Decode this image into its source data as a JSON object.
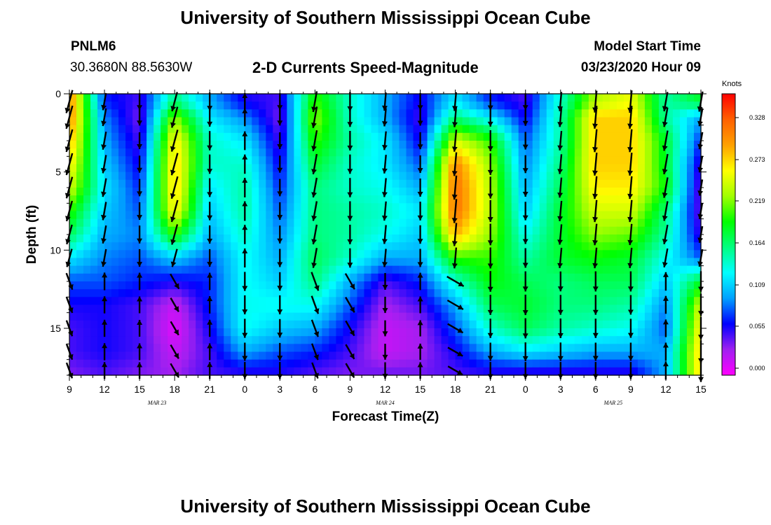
{
  "header": {
    "title": "University of Southern Mississippi Ocean Cube",
    "station_id": "PNLM6",
    "station_coords": "30.3680N 88.5630W",
    "subtitle": "2-D Currents Speed-Magnitude",
    "model_start_label": "Model Start Time",
    "model_start_value": "03/23/2020 Hour 09"
  },
  "footer": {
    "title": "University of Southern Mississippi Ocean Cube"
  },
  "colors": {
    "scale": [
      "#ff00ff",
      "#a020f0",
      "#0000ff",
      "#00a0ff",
      "#00ffff",
      "#00ff80",
      "#00ff00",
      "#a0ff00",
      "#ffff00",
      "#ffa000",
      "#ff6000",
      "#ff0000"
    ],
    "arrow": "#000000",
    "frame": "#000000"
  },
  "chart_data": {
    "type": "heatmap",
    "title": "2-D Currents Speed-Magnitude",
    "xlabel": "Forecast Time(Z)",
    "ylabel": "Depth (ft)",
    "x_ticks": [
      "9",
      "12",
      "15",
      "18",
      "21",
      "0",
      "3",
      "6",
      "9",
      "12",
      "15",
      "18",
      "21",
      "0",
      "3",
      "6",
      "9",
      "12",
      "15"
    ],
    "x_range_hours": [
      0,
      54
    ],
    "date_labels": [
      {
        "text": "MAR 23",
        "hour": 7.5
      },
      {
        "text": "MAR 24",
        "hour": 27
      },
      {
        "text": "MAR 25",
        "hour": 46.5
      }
    ],
    "y_ticks": [
      0,
      5,
      10,
      15
    ],
    "y_range_ft": [
      0,
      18
    ],
    "y_inverted": true,
    "colorbar": {
      "unit": "Knots",
      "range": [
        0.0,
        0.35
      ],
      "tick_values": [
        0.328,
        0.273,
        0.219,
        0.164,
        0.109,
        0.055,
        0.0
      ],
      "tick_labels": [
        "0.328",
        "0.273",
        "0.219",
        "0.164",
        "0.109",
        "0.055",
        "0.000"
      ]
    },
    "depth_levels_ft": [
      0.5,
      1.5,
      3,
      4.5,
      6,
      7.5,
      9,
      10.5,
      12,
      13.5,
      15,
      16.5,
      17.7
    ],
    "speed_grid": {
      "hours": [
        0,
        3,
        6,
        9,
        12,
        15,
        18,
        21,
        24,
        27,
        30,
        33,
        36,
        39,
        42,
        45,
        48,
        51,
        54
      ],
      "depth_rows": [
        {
          "depth": 0.5,
          "speeds": [
            0.3,
            0.07,
            0.05,
            0.16,
            0.1,
            0.06,
            0.05,
            0.2,
            0.14,
            0.1,
            0.06,
            0.12,
            0.07,
            0.05,
            0.14,
            0.23,
            0.25,
            0.15,
            0.18
          ]
        },
        {
          "depth": 1.5,
          "speeds": [
            0.3,
            0.09,
            0.04,
            0.22,
            0.12,
            0.09,
            0.04,
            0.22,
            0.14,
            0.1,
            0.05,
            0.16,
            0.12,
            0.06,
            0.15,
            0.27,
            0.27,
            0.15,
            0.1
          ]
        },
        {
          "depth": 3.0,
          "speeds": [
            0.28,
            0.1,
            0.05,
            0.26,
            0.14,
            0.12,
            0.05,
            0.2,
            0.15,
            0.12,
            0.06,
            0.24,
            0.2,
            0.08,
            0.15,
            0.27,
            0.27,
            0.18,
            0.07
          ]
        },
        {
          "depth": 4.5,
          "speeds": [
            0.26,
            0.11,
            0.06,
            0.27,
            0.14,
            0.14,
            0.06,
            0.18,
            0.14,
            0.12,
            0.08,
            0.3,
            0.22,
            0.09,
            0.16,
            0.27,
            0.27,
            0.18,
            0.05
          ]
        },
        {
          "depth": 6.0,
          "speeds": [
            0.24,
            0.12,
            0.07,
            0.27,
            0.12,
            0.15,
            0.07,
            0.16,
            0.14,
            0.13,
            0.1,
            0.31,
            0.23,
            0.1,
            0.17,
            0.26,
            0.26,
            0.19,
            0.04
          ]
        },
        {
          "depth": 7.5,
          "speeds": [
            0.2,
            0.11,
            0.08,
            0.26,
            0.11,
            0.15,
            0.08,
            0.16,
            0.15,
            0.14,
            0.12,
            0.31,
            0.23,
            0.11,
            0.18,
            0.24,
            0.24,
            0.16,
            0.04
          ]
        },
        {
          "depth": 9.0,
          "speeds": [
            0.17,
            0.1,
            0.09,
            0.2,
            0.1,
            0.14,
            0.09,
            0.16,
            0.15,
            0.13,
            0.11,
            0.28,
            0.22,
            0.13,
            0.18,
            0.22,
            0.21,
            0.15,
            0.05
          ]
        },
        {
          "depth": 10.5,
          "speeds": [
            0.12,
            0.09,
            0.08,
            0.11,
            0.08,
            0.13,
            0.1,
            0.17,
            0.14,
            0.1,
            0.1,
            0.2,
            0.2,
            0.15,
            0.18,
            0.19,
            0.18,
            0.13,
            0.08
          ]
        },
        {
          "depth": 12.0,
          "speeds": [
            0.08,
            0.08,
            0.07,
            0.06,
            0.07,
            0.13,
            0.11,
            0.16,
            0.1,
            0.05,
            0.07,
            0.14,
            0.19,
            0.17,
            0.16,
            0.17,
            0.17,
            0.11,
            0.18
          ]
        },
        {
          "depth": 13.5,
          "speeds": [
            0.06,
            0.06,
            0.05,
            0.02,
            0.07,
            0.13,
            0.13,
            0.13,
            0.08,
            0.03,
            0.05,
            0.1,
            0.17,
            0.18,
            0.16,
            0.16,
            0.15,
            0.09,
            0.24
          ]
        },
        {
          "depth": 15.0,
          "speeds": [
            0.05,
            0.06,
            0.05,
            0.01,
            0.06,
            0.13,
            0.11,
            0.1,
            0.06,
            0.02,
            0.03,
            0.08,
            0.14,
            0.17,
            0.15,
            0.14,
            0.13,
            0.08,
            0.26
          ]
        },
        {
          "depth": 16.5,
          "speeds": [
            0.05,
            0.06,
            0.05,
            0.02,
            0.05,
            0.1,
            0.08,
            0.07,
            0.05,
            0.02,
            0.03,
            0.06,
            0.1,
            0.12,
            0.11,
            0.1,
            0.1,
            0.1,
            0.27
          ]
        },
        {
          "depth": 17.7,
          "speeds": [
            0.04,
            0.05,
            0.04,
            0.03,
            0.05,
            0.06,
            0.06,
            0.05,
            0.04,
            0.04,
            0.04,
            0.05,
            0.06,
            0.06,
            0.06,
            0.06,
            0.06,
            0.1,
            0.27
          ]
        }
      ]
    },
    "arrow_direction_deg_by_column": [
      -15,
      -10,
      0,
      -15,
      0,
      180,
      0,
      -10,
      0,
      -5,
      0,
      -5,
      0,
      0,
      -5,
      -5,
      -5,
      -10,
      -10
    ],
    "arrow_direction_deg_bottom_rows": [
      20,
      180,
      180,
      30,
      180,
      0,
      0,
      20,
      30,
      0,
      180,
      60,
      0,
      0,
      0,
      0,
      0,
      180,
      0
    ]
  }
}
